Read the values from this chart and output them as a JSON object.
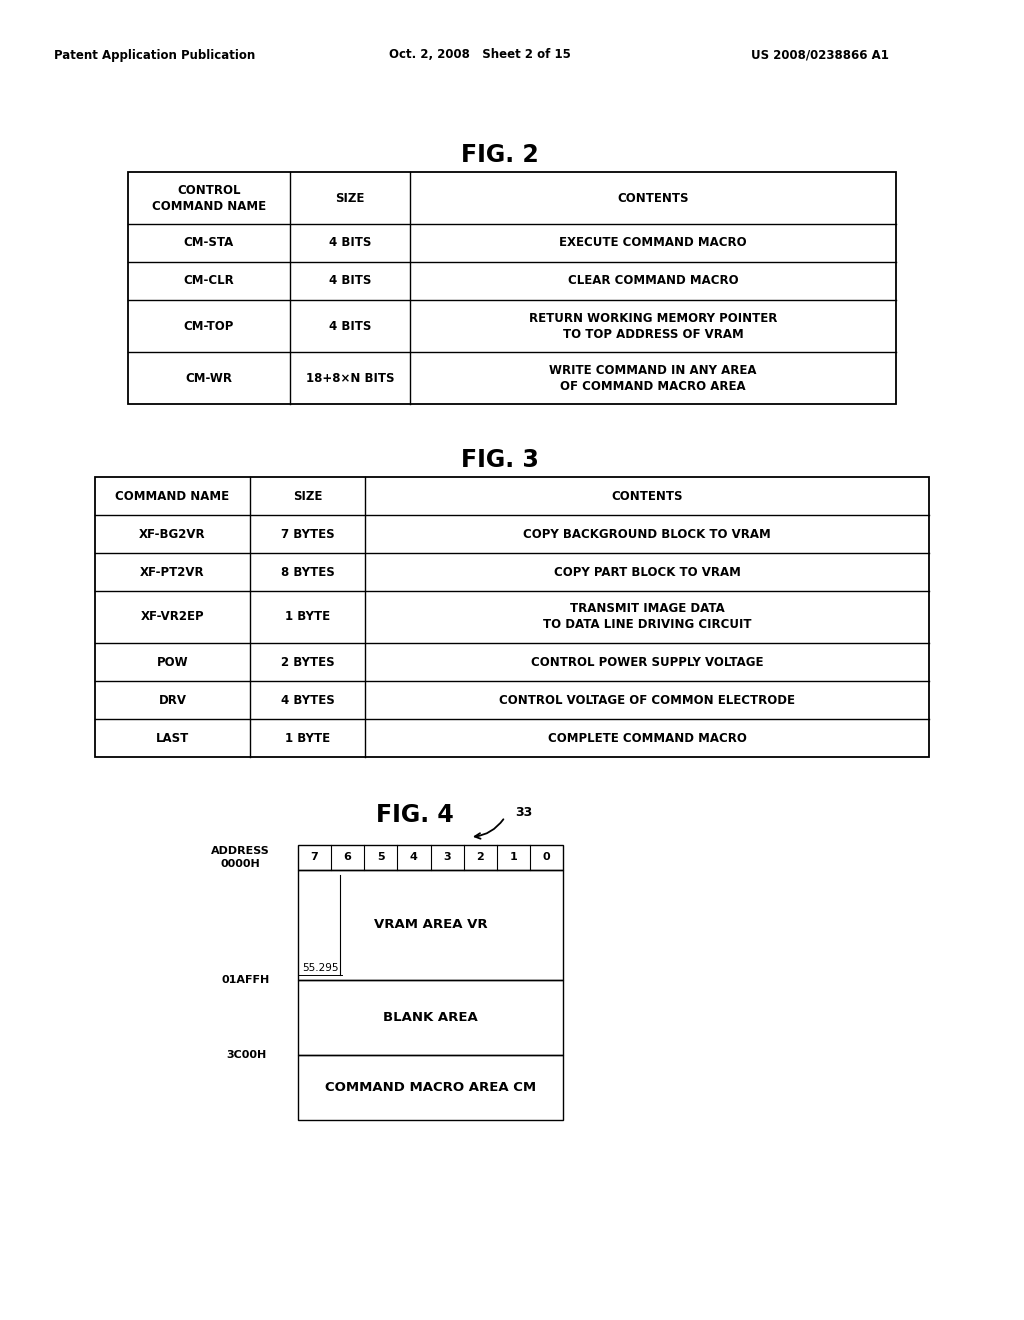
{
  "header_left": "Patent Application Publication",
  "header_mid": "Oct. 2, 2008   Sheet 2 of 15",
  "header_right": "US 2008/0238866 A1",
  "fig2_title": "FIG. 2",
  "fig2_headers": [
    "CONTROL\nCOMMAND NAME",
    "SIZE",
    "CONTENTS"
  ],
  "fig2_rows": [
    [
      "CM-STA",
      "4 BITS",
      "EXECUTE COMMAND MACRO"
    ],
    [
      "CM-CLR",
      "4 BITS",
      "CLEAR COMMAND MACRO"
    ],
    [
      "CM-TOP",
      "4 BITS",
      "RETURN WORKING MEMORY POINTER\nTO TOP ADDRESS OF VRAM"
    ],
    [
      "CM-WR",
      "18+8×N BITS",
      "WRITE COMMAND IN ANY AREA\nOF COMMAND MACRO AREA"
    ]
  ],
  "fig3_title": "FIG. 3",
  "fig3_headers": [
    "COMMAND NAME",
    "SIZE",
    "CONTENTS"
  ],
  "fig3_rows": [
    [
      "XF-BG2VR",
      "7 BYTES",
      "COPY BACKGROUND BLOCK TO VRAM"
    ],
    [
      "XF-PT2VR",
      "8 BYTES",
      "COPY PART BLOCK TO VRAM"
    ],
    [
      "XF-VR2EP",
      "1 BYTE",
      "TRANSMIT IMAGE DATA\nTO DATA LINE DRIVING CIRCUIT"
    ],
    [
      "POW",
      "2 BYTES",
      "CONTROL POWER SUPPLY VOLTAGE"
    ],
    [
      "DRV",
      "4 BYTES",
      "CONTROL VOLTAGE OF COMMON ELECTRODE"
    ],
    [
      "LAST",
      "1 BYTE",
      "COMPLETE COMMAND MACRO"
    ]
  ],
  "fig4_title": "FIG. 4",
  "fig4_label": "33",
  "fig4_address_labels": [
    "ADDRESS\n0000H",
    "01AFFH",
    "3C00H"
  ],
  "fig4_bit_labels": [
    "7",
    "6",
    "5",
    "4",
    "3",
    "2",
    "1",
    "0"
  ],
  "fig4_area_labels": [
    "VRAM AREA VR",
    "BLANK AREA",
    "COMMAND MACRO AREA CM"
  ],
  "fig4_inner_label": "55.295",
  "background_color": "#ffffff",
  "text_color": "#000000",
  "line_color": "#000000"
}
